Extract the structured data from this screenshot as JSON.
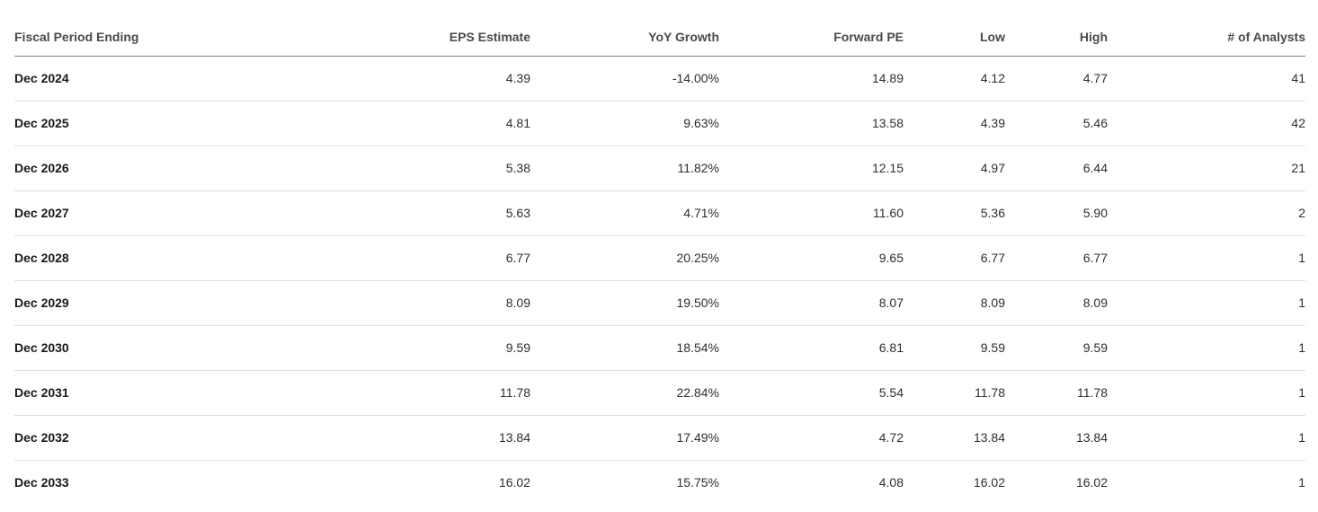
{
  "chart_data": {
    "type": "table",
    "columns": [
      {
        "key": "period",
        "label": "Fiscal Period Ending",
        "align": "left"
      },
      {
        "key": "eps_estimate",
        "label": "EPS Estimate",
        "align": "right"
      },
      {
        "key": "yoy_growth",
        "label": "YoY Growth",
        "align": "right"
      },
      {
        "key": "forward_pe",
        "label": "Forward PE",
        "align": "right"
      },
      {
        "key": "low",
        "label": "Low",
        "align": "right"
      },
      {
        "key": "high",
        "label": "High",
        "align": "right"
      },
      {
        "key": "analysts",
        "label": "# of Analysts",
        "align": "right"
      }
    ],
    "rows": [
      {
        "period": "Dec 2024",
        "eps_estimate": "4.39",
        "yoy_growth": "-14.00%",
        "forward_pe": "14.89",
        "low": "4.12",
        "high": "4.77",
        "analysts": "41"
      },
      {
        "period": "Dec 2025",
        "eps_estimate": "4.81",
        "yoy_growth": "9.63%",
        "forward_pe": "13.58",
        "low": "4.39",
        "high": "5.46",
        "analysts": "42"
      },
      {
        "period": "Dec 2026",
        "eps_estimate": "5.38",
        "yoy_growth": "11.82%",
        "forward_pe": "12.15",
        "low": "4.97",
        "high": "6.44",
        "analysts": "21"
      },
      {
        "period": "Dec 2027",
        "eps_estimate": "5.63",
        "yoy_growth": "4.71%",
        "forward_pe": "11.60",
        "low": "5.36",
        "high": "5.90",
        "analysts": "2"
      },
      {
        "period": "Dec 2028",
        "eps_estimate": "6.77",
        "yoy_growth": "20.25%",
        "forward_pe": "9.65",
        "low": "6.77",
        "high": "6.77",
        "analysts": "1"
      },
      {
        "period": "Dec 2029",
        "eps_estimate": "8.09",
        "yoy_growth": "19.50%",
        "forward_pe": "8.07",
        "low": "8.09",
        "high": "8.09",
        "analysts": "1"
      },
      {
        "period": "Dec 2030",
        "eps_estimate": "9.59",
        "yoy_growth": "18.54%",
        "forward_pe": "6.81",
        "low": "9.59",
        "high": "9.59",
        "analysts": "1"
      },
      {
        "period": "Dec 2031",
        "eps_estimate": "11.78",
        "yoy_growth": "22.84%",
        "forward_pe": "5.54",
        "low": "11.78",
        "high": "11.78",
        "analysts": "1"
      },
      {
        "period": "Dec 2032",
        "eps_estimate": "13.84",
        "yoy_growth": "17.49%",
        "forward_pe": "4.72",
        "low": "13.84",
        "high": "13.84",
        "analysts": "1"
      },
      {
        "period": "Dec 2033",
        "eps_estimate": "16.02",
        "yoy_growth": "15.75%",
        "forward_pe": "4.08",
        "low": "16.02",
        "high": "16.02",
        "analysts": "1"
      }
    ]
  },
  "colors": {
    "background": "#ffffff",
    "header_text": "#4a4a4a",
    "period_text": "#1a1a1a",
    "value_text": "#2e2e2e",
    "header_border": "#7f7f7f",
    "row_border": "#e0e0e0"
  }
}
